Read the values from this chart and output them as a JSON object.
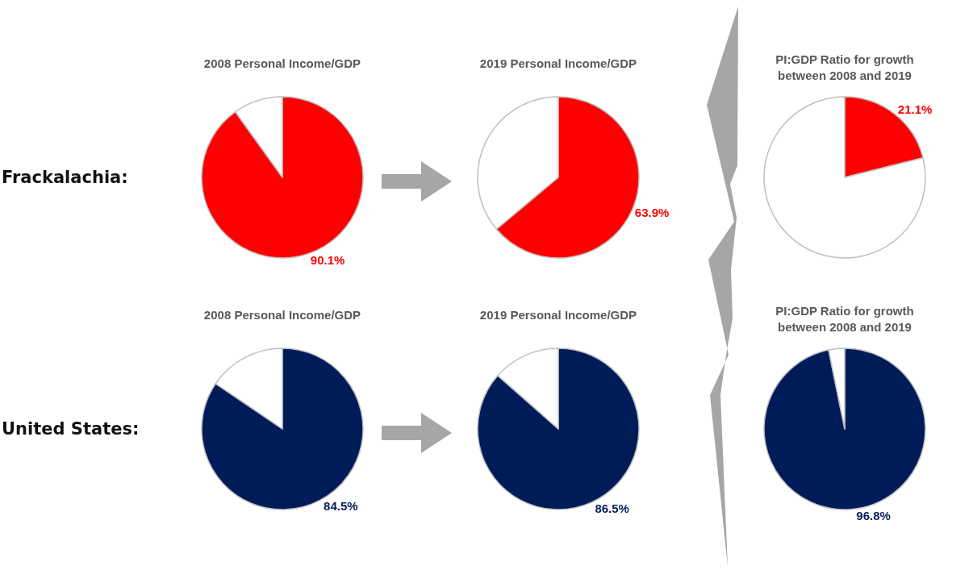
{
  "chart_data": [
    {
      "type": "pie",
      "title": "2008 Personal Income/GDP",
      "categories": [
        null,
        null
      ],
      "values": [
        90.1,
        9.9
      ],
      "colors": [
        "#ff0000",
        "#ffffff"
      ],
      "value_labels": [
        "90.1%",
        null
      ],
      "annotations": [
        "Frackalachia:"
      ],
      "legend": false
    },
    {
      "type": "pie",
      "title": "2019 Personal Income/GDP",
      "categories": [
        null,
        null
      ],
      "values": [
        63.9,
        36.1
      ],
      "colors": [
        "#ff0000",
        "#ffffff"
      ],
      "value_labels": [
        "63.9%",
        null
      ],
      "legend": false
    },
    {
      "type": "pie",
      "title": "PI:GDP Ratio for growth\nbetween 2008 and 2019",
      "categories": [
        null,
        null
      ],
      "values": [
        21.1,
        78.9
      ],
      "colors": [
        "#ff0000",
        "#ffffff"
      ],
      "value_labels": [
        "21.1%",
        null
      ],
      "legend": false
    },
    {
      "type": "pie",
      "title": "2008 Personal Income/GDP",
      "categories": [
        null,
        null
      ],
      "values": [
        84.5,
        15.5
      ],
      "colors": [
        "#001c58",
        "#ffffff"
      ],
      "value_labels": [
        "84.5%",
        null
      ],
      "annotations": [
        "United States:"
      ],
      "legend": false
    },
    {
      "type": "pie",
      "title": "2019 Personal Income/GDP",
      "categories": [
        null,
        null
      ],
      "values": [
        86.5,
        13.5
      ],
      "colors": [
        "#001c58",
        "#ffffff"
      ],
      "value_labels": [
        "86.5%",
        null
      ],
      "legend": false
    },
    {
      "type": "pie",
      "title": "PI:GDP Ratio for growth\nbetween 2008 and 2019",
      "categories": [
        null,
        null
      ],
      "values": [
        96.8,
        3.2
      ],
      "colors": [
        "#001c58",
        "#ffffff"
      ],
      "value_labels": [
        "96.8%",
        null
      ],
      "legend": false
    }
  ]
}
